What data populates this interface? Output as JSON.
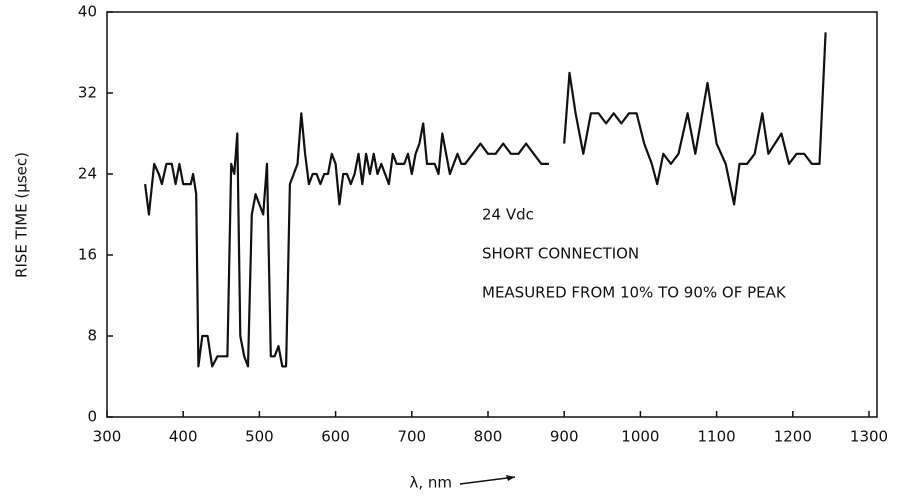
{
  "chart_data": {
    "type": "line",
    "xlabel": "λ, nm",
    "ylabel": "RISE TIME (μsec)",
    "annotations": [
      "24 Vdc",
      "SHORT CONNECTION",
      "MEASURED FROM 10% TO 90% OF PEAK"
    ],
    "xlim": [
      300,
      1300
    ],
    "xticks": [
      300,
      400,
      500,
      600,
      700,
      800,
      900,
      1000,
      1100,
      1200,
      1300
    ],
    "ylim": [
      0,
      40
    ],
    "yticks": [
      0,
      8,
      16,
      24,
      32,
      40
    ],
    "color": "#111111",
    "x": [
      350,
      355,
      362,
      368,
      372,
      378,
      385,
      390,
      395,
      400,
      405,
      410,
      413,
      417,
      420,
      425,
      432,
      438,
      445,
      452,
      458,
      463,
      467,
      471,
      475,
      480,
      485,
      490,
      495,
      500,
      505,
      510,
      515,
      520,
      525,
      530,
      535,
      540,
      545,
      550,
      555,
      560,
      565,
      570,
      575,
      580,
      585,
      590,
      595,
      600,
      605,
      610,
      615,
      620,
      625,
      630,
      635,
      640,
      645,
      650,
      655,
      660,
      665,
      670,
      675,
      680,
      690,
      695,
      700,
      705,
      710,
      715,
      720,
      730,
      735,
      740,
      745,
      750,
      760,
      765,
      770,
      780,
      790,
      800,
      810,
      820,
      830,
      840,
      850,
      860,
      870,
      880,
      890,
      900,
      907,
      915,
      925,
      935,
      945,
      955,
      965,
      975,
      985,
      995,
      1005,
      1015,
      1022,
      1030,
      1040,
      1050,
      1062,
      1072,
      1088,
      1100,
      1112,
      1123,
      1130,
      1140,
      1150,
      1160,
      1168,
      1185,
      1195,
      1205,
      1215,
      1225,
      1235,
      1243
    ],
    "values": [
      23,
      20,
      25,
      24,
      23,
      25,
      25,
      23,
      25,
      23,
      23,
      23,
      24,
      22,
      5,
      8,
      8,
      5,
      6,
      6,
      6,
      25,
      24,
      28,
      8,
      6,
      5,
      20,
      22,
      21,
      20,
      25,
      6,
      6,
      7,
      5,
      5,
      23,
      24,
      25,
      30,
      26,
      23,
      24,
      24,
      23,
      24,
      24,
      26,
      25,
      21,
      24,
      24,
      23,
      24,
      26,
      23,
      26,
      24,
      26,
      24,
      25,
      24,
      23,
      26,
      25,
      25,
      26,
      24,
      26,
      27,
      29,
      25,
      25,
      24,
      28,
      26,
      24,
      26,
      25,
      25,
      26,
      27,
      26,
      26,
      27,
      26,
      26,
      27,
      26,
      25,
      25,
      null,
      27,
      34,
      30,
      26,
      30,
      30,
      29,
      30,
      29,
      30,
      30,
      27,
      25,
      23,
      26,
      25,
      26,
      30,
      26,
      33,
      27,
      25,
      21,
      25,
      25,
      26,
      30,
      26,
      28,
      25,
      26,
      26,
      25,
      25,
      38
    ]
  }
}
